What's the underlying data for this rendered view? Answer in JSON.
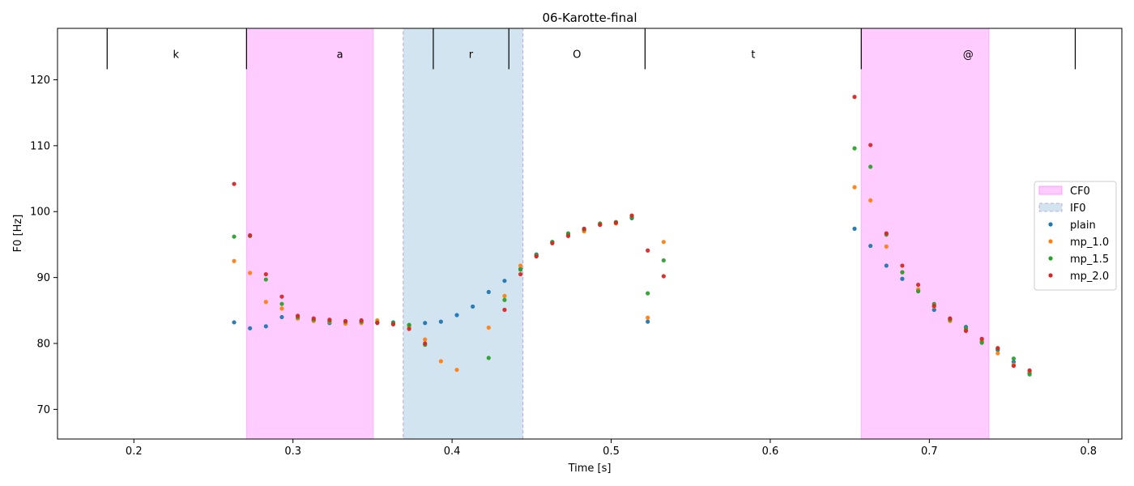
{
  "chart_data": {
    "type": "scatter",
    "title": "06-Karotte-final",
    "xlabel": "Time [s]",
    "ylabel": "F0 [Hz]",
    "xlim": [
      0.152,
      0.821
    ],
    "ylim": [
      65.5,
      127.8
    ],
    "xticks": [
      0.2,
      0.3,
      0.4,
      0.5,
      0.6,
      0.7,
      0.8
    ],
    "xtick_labels": [
      "0.2",
      "0.3",
      "0.4",
      "0.5",
      "0.6",
      "0.7",
      "0.8"
    ],
    "yticks": [
      70,
      80,
      90,
      100,
      110,
      120
    ],
    "ytick_labels": [
      "70",
      "80",
      "90",
      "100",
      "110",
      "120"
    ],
    "legend_position": "center-right",
    "phone_boundaries": [
      0.1832,
      0.2708,
      0.3882,
      0.4357,
      0.5213,
      0.6572,
      0.7917
    ],
    "phone_label_y": 123.8,
    "phones": [
      {
        "label": "k",
        "x": 0.2265
      },
      {
        "label": "a",
        "x": 0.3295
      },
      {
        "label": "r",
        "x": 0.4119
      },
      {
        "label": "O",
        "x": 0.4785
      },
      {
        "label": "t",
        "x": 0.5893
      },
      {
        "label": "@",
        "x": 0.7244
      }
    ],
    "regions": [
      {
        "name": "CF0",
        "x0": 0.2708,
        "x1": 0.3505,
        "color": "#ff80ff"
      },
      {
        "name": "IF0",
        "x0": 0.3693,
        "x1": 0.4446,
        "color": "#1f77b4"
      },
      {
        "name": "CF0",
        "x0": 0.6572,
        "x1": 0.7375,
        "color": "#ff80ff"
      }
    ],
    "series": [
      {
        "name": "plain",
        "color": "#1f77b4",
        "x": [
          0.263,
          0.273,
          0.283,
          0.293,
          0.303,
          0.313,
          0.323,
          0.333,
          0.343,
          0.353,
          0.363,
          0.373,
          0.383,
          0.393,
          0.403,
          0.413,
          0.423,
          0.433,
          0.443,
          0.453,
          0.463,
          0.473,
          0.483,
          0.493,
          0.503,
          0.513,
          0.523,
          0.653,
          0.663,
          0.673,
          0.683,
          0.693,
          0.703,
          0.713,
          0.723,
          0.733,
          0.743,
          0.753,
          0.763
        ],
        "y": [
          83.2,
          82.3,
          82.6,
          84.0,
          83.8,
          83.5,
          83.1,
          83.2,
          83.3,
          83.2,
          83.2,
          82.8,
          83.1,
          83.3,
          84.3,
          85.6,
          87.8,
          89.5,
          91.3,
          93.5,
          95.4,
          96.6,
          97.2,
          98.1,
          98.4,
          99.0,
          83.3,
          97.4,
          94.8,
          91.8,
          89.8,
          88.0,
          85.1,
          83.7,
          82.5,
          80.3,
          79.0,
          77.2,
          75.5
        ]
      },
      {
        "name": "mp_1.0",
        "color": "#ff7f0e",
        "x": [
          0.263,
          0.273,
          0.283,
          0.293,
          0.303,
          0.313,
          0.323,
          0.333,
          0.343,
          0.353,
          0.363,
          0.373,
          0.383,
          0.393,
          0.403,
          0.423,
          0.433,
          0.443,
          0.453,
          0.463,
          0.473,
          0.483,
          0.493,
          0.503,
          0.513,
          0.523,
          0.533,
          0.653,
          0.663,
          0.673,
          0.683,
          0.693,
          0.703,
          0.713,
          0.723,
          0.733,
          0.743,
          0.753,
          0.763
        ],
        "y": [
          92.5,
          90.7,
          86.3,
          85.3,
          83.8,
          83.4,
          83.3,
          83.0,
          83.1,
          83.5,
          83.0,
          82.5,
          80.6,
          77.3,
          76.0,
          82.4,
          87.2,
          91.8,
          93.3,
          95.3,
          96.4,
          97.0,
          98.0,
          98.2,
          99.2,
          83.9,
          95.4,
          103.7,
          101.7,
          94.7,
          90.8,
          88.2,
          85.6,
          83.4,
          82.0,
          80.5,
          78.5,
          76.8,
          75.8
        ]
      },
      {
        "name": "mp_1.5",
        "color": "#2ca02c",
        "x": [
          0.263,
          0.273,
          0.283,
          0.293,
          0.303,
          0.313,
          0.323,
          0.333,
          0.343,
          0.353,
          0.363,
          0.373,
          0.383,
          0.423,
          0.433,
          0.443,
          0.453,
          0.463,
          0.473,
          0.483,
          0.493,
          0.503,
          0.513,
          0.523,
          0.533,
          0.653,
          0.663,
          0.673,
          0.683,
          0.693,
          0.703,
          0.713,
          0.723,
          0.733,
          0.743,
          0.753,
          0.763
        ],
        "y": [
          96.2,
          96.3,
          89.7,
          86.0,
          84.0,
          83.6,
          83.4,
          83.3,
          83.3,
          83.2,
          83.1,
          82.8,
          79.8,
          77.8,
          86.6,
          91.2,
          93.4,
          95.4,
          96.7,
          97.3,
          98.2,
          98.4,
          99.1,
          87.6,
          92.6,
          109.6,
          106.8,
          96.5,
          90.8,
          87.9,
          86.0,
          83.6,
          82.3,
          80.1,
          79.2,
          77.7,
          75.3
        ]
      },
      {
        "name": "mp_2.0",
        "color": "#d62728",
        "x": [
          0.263,
          0.273,
          0.283,
          0.293,
          0.303,
          0.313,
          0.323,
          0.333,
          0.343,
          0.353,
          0.363,
          0.373,
          0.383,
          0.433,
          0.443,
          0.453,
          0.463,
          0.473,
          0.483,
          0.493,
          0.503,
          0.513,
          0.523,
          0.533,
          0.653,
          0.663,
          0.673,
          0.683,
          0.693,
          0.703,
          0.713,
          0.723,
          0.733,
          0.743,
          0.753,
          0.763
        ],
        "y": [
          104.2,
          96.4,
          90.5,
          87.1,
          84.2,
          83.8,
          83.6,
          83.4,
          83.5,
          83.1,
          82.9,
          82.2,
          80.0,
          85.1,
          90.5,
          93.2,
          95.2,
          96.3,
          97.4,
          98.0,
          98.3,
          99.4,
          94.1,
          90.2,
          117.4,
          110.1,
          96.7,
          91.8,
          88.9,
          85.7,
          83.8,
          81.9,
          80.7,
          79.3,
          76.6,
          75.9
        ]
      }
    ],
    "legend": [
      {
        "label": "CF0",
        "kind": "patch",
        "color": "#ff80ff"
      },
      {
        "label": "IF0",
        "kind": "patch",
        "color": "#1f77b4"
      },
      {
        "label": "plain",
        "kind": "marker",
        "color": "#1f77b4"
      },
      {
        "label": "mp_1.0",
        "kind": "marker",
        "color": "#ff7f0e"
      },
      {
        "label": "mp_1.5",
        "kind": "marker",
        "color": "#2ca02c"
      },
      {
        "label": "mp_2.0",
        "kind": "marker",
        "color": "#d62728"
      }
    ]
  }
}
